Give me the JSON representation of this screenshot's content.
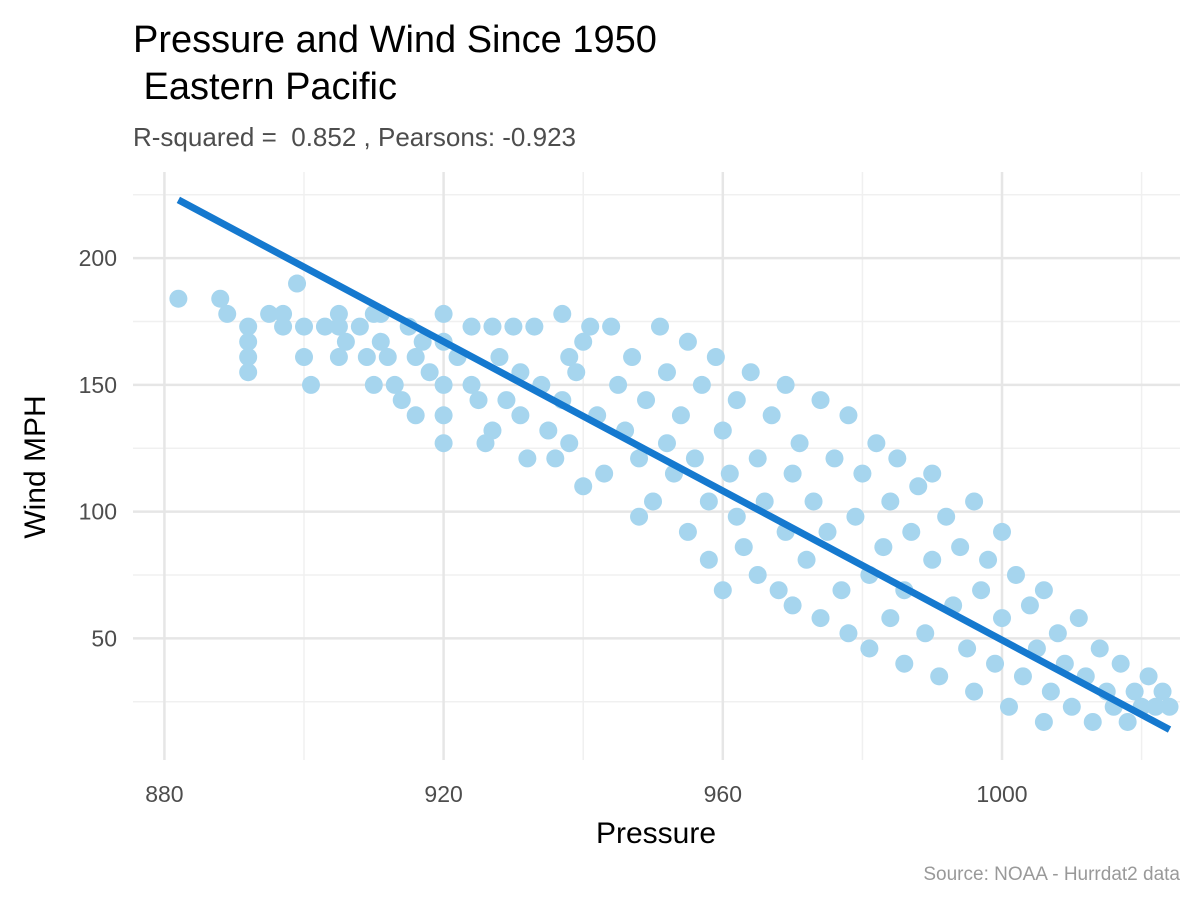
{
  "colors": {
    "point": "#a6d5ee",
    "line": "#1579cf",
    "grid_major": "#e6e6e6",
    "grid_minor": "#f0f0f0",
    "background": "#ffffff"
  },
  "chart_data": {
    "type": "scatter",
    "title_line1": "Pressure and Wind Since 1950",
    "title_line2": " Eastern Pacific",
    "subtitle": "R-squared =  0.852 , Pearsons: -0.923",
    "xlabel": "Pressure",
    "ylabel": "Wind MPH",
    "caption": "Source: NOAA - Hurrdat2 data",
    "xlim": [
      875.5,
      1025.5
    ],
    "ylim": [
      2,
      234
    ],
    "xticks": [
      880,
      920,
      960,
      1000
    ],
    "yticks": [
      50,
      100,
      150,
      200
    ],
    "grid": true,
    "legend": "none",
    "regression": {
      "x": [
        882,
        1024
      ],
      "y": [
        223,
        14
      ]
    },
    "series": [
      {
        "points": [
          [
            882,
            184
          ],
          [
            888,
            184
          ],
          [
            889,
            178
          ],
          [
            892,
            173
          ],
          [
            892,
            167
          ],
          [
            892,
            161
          ],
          [
            892,
            155
          ],
          [
            895,
            178
          ],
          [
            897,
            178
          ],
          [
            897,
            173
          ],
          [
            899,
            190
          ],
          [
            900,
            173
          ],
          [
            900,
            161
          ],
          [
            901,
            150
          ],
          [
            903,
            173
          ],
          [
            905,
            178
          ],
          [
            905,
            173
          ],
          [
            905,
            161
          ],
          [
            906,
            167
          ],
          [
            908,
            173
          ],
          [
            909,
            161
          ],
          [
            910,
            178
          ],
          [
            910,
            150
          ],
          [
            911,
            178
          ],
          [
            911,
            167
          ],
          [
            912,
            161
          ],
          [
            913,
            150
          ],
          [
            914,
            144
          ],
          [
            915,
            173
          ],
          [
            916,
            161
          ],
          [
            916,
            138
          ],
          [
            917,
            167
          ],
          [
            918,
            155
          ],
          [
            920,
            178
          ],
          [
            920,
            167
          ],
          [
            920,
            150
          ],
          [
            920,
            138
          ],
          [
            920,
            127
          ],
          [
            922,
            161
          ],
          [
            924,
            173
          ],
          [
            924,
            150
          ],
          [
            925,
            144
          ],
          [
            926,
            127
          ],
          [
            927,
            173
          ],
          [
            927,
            132
          ],
          [
            928,
            161
          ],
          [
            929,
            144
          ],
          [
            930,
            173
          ],
          [
            931,
            155
          ],
          [
            931,
            138
          ],
          [
            932,
            121
          ],
          [
            933,
            173
          ],
          [
            934,
            150
          ],
          [
            935,
            132
          ],
          [
            936,
            121
          ],
          [
            937,
            178
          ],
          [
            937,
            144
          ],
          [
            938,
            161
          ],
          [
            938,
            127
          ],
          [
            939,
            155
          ],
          [
            940,
            167
          ],
          [
            940,
            110
          ],
          [
            941,
            173
          ],
          [
            942,
            138
          ],
          [
            943,
            115
          ],
          [
            944,
            173
          ],
          [
            945,
            150
          ],
          [
            946,
            132
          ],
          [
            947,
            161
          ],
          [
            948,
            121
          ],
          [
            948,
            98
          ],
          [
            949,
            144
          ],
          [
            950,
            104
          ],
          [
            951,
            173
          ],
          [
            952,
            155
          ],
          [
            952,
            127
          ],
          [
            953,
            115
          ],
          [
            954,
            138
          ],
          [
            955,
            167
          ],
          [
            955,
            92
          ],
          [
            956,
            121
          ],
          [
            957,
            150
          ],
          [
            958,
            104
          ],
          [
            958,
            81
          ],
          [
            959,
            161
          ],
          [
            960,
            132
          ],
          [
            960,
            69
          ],
          [
            961,
            115
          ],
          [
            962,
            144
          ],
          [
            962,
            98
          ],
          [
            963,
            86
          ],
          [
            964,
            155
          ],
          [
            965,
            121
          ],
          [
            965,
            75
          ],
          [
            966,
            104
          ],
          [
            967,
            138
          ],
          [
            968,
            69
          ],
          [
            969,
            150
          ],
          [
            969,
            92
          ],
          [
            970,
            115
          ],
          [
            970,
            63
          ],
          [
            971,
            127
          ],
          [
            972,
            81
          ],
          [
            973,
            104
          ],
          [
            974,
            144
          ],
          [
            974,
            58
          ],
          [
            975,
            92
          ],
          [
            976,
            121
          ],
          [
            977,
            69
          ],
          [
            978,
            138
          ],
          [
            978,
            52
          ],
          [
            979,
            98
          ],
          [
            980,
            115
          ],
          [
            981,
            75
          ],
          [
            981,
            46
          ],
          [
            982,
            127
          ],
          [
            983,
            86
          ],
          [
            984,
            104
          ],
          [
            984,
            58
          ],
          [
            985,
            121
          ],
          [
            986,
            69
          ],
          [
            986,
            40
          ],
          [
            987,
            92
          ],
          [
            988,
            110
          ],
          [
            989,
            52
          ],
          [
            990,
            81
          ],
          [
            990,
            115
          ],
          [
            991,
            35
          ],
          [
            992,
            98
          ],
          [
            993,
            63
          ],
          [
            994,
            86
          ],
          [
            995,
            46
          ],
          [
            996,
            104
          ],
          [
            996,
            29
          ],
          [
            997,
            69
          ],
          [
            998,
            81
          ],
          [
            999,
            40
          ],
          [
            1000,
            58
          ],
          [
            1000,
            92
          ],
          [
            1001,
            23
          ],
          [
            1002,
            75
          ],
          [
            1003,
            35
          ],
          [
            1004,
            63
          ],
          [
            1005,
            46
          ],
          [
            1006,
            17
          ],
          [
            1006,
            69
          ],
          [
            1007,
            29
          ],
          [
            1008,
            52
          ],
          [
            1009,
            40
          ],
          [
            1010,
            23
          ],
          [
            1011,
            58
          ],
          [
            1012,
            35
          ],
          [
            1013,
            17
          ],
          [
            1014,
            46
          ],
          [
            1015,
            29
          ],
          [
            1016,
            23
          ],
          [
            1017,
            40
          ],
          [
            1018,
            17
          ],
          [
            1019,
            29
          ],
          [
            1020,
            23
          ],
          [
            1021,
            35
          ],
          [
            1022,
            23
          ],
          [
            1023,
            29
          ],
          [
            1024,
            23
          ]
        ]
      }
    ]
  }
}
